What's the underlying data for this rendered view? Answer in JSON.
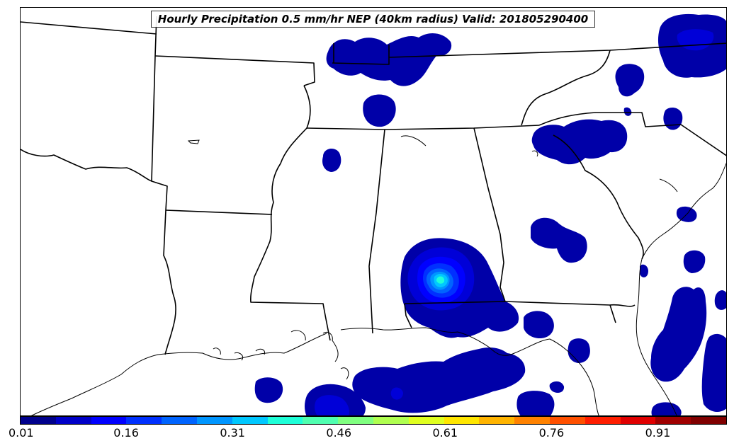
{
  "title": "Hourly Precipitation 0.5 mm/hr NEP (40km radius) Valid: 201805290400",
  "colorbar": {
    "colors": [
      "#00008c",
      "#0000c8",
      "#0000ff",
      "#0030ff",
      "#0064ff",
      "#0096ff",
      "#00c8ff",
      "#1effd8",
      "#50ffb0",
      "#80ff80",
      "#b0ff50",
      "#e0ff20",
      "#ffe600",
      "#ffb400",
      "#ff8200",
      "#ff5000",
      "#ff1e00",
      "#e00000",
      "#a00000",
      "#800000"
    ],
    "tick_labels": [
      "0.01",
      "0.16",
      "0.31",
      "0.46",
      "0.61",
      "0.76",
      "0.91"
    ]
  }
}
